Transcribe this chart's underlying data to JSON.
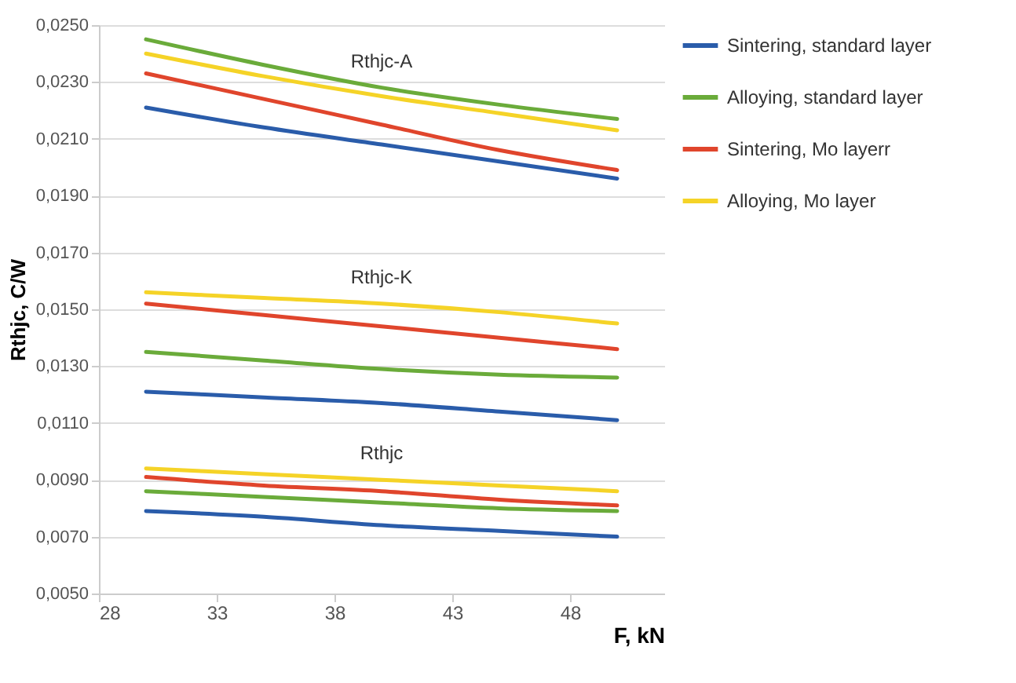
{
  "chart_data": {
    "type": "line",
    "xlabel": "F, kN",
    "ylabel": "Rthjc, C/W",
    "x": [
      30,
      35,
      40,
      45,
      50
    ],
    "xlim": [
      28,
      52
    ],
    "xticks": [
      28,
      33,
      38,
      43,
      48
    ],
    "ylim": [
      0.005,
      0.025
    ],
    "yticks": [
      {
        "value": 0.005,
        "label": "0,0050"
      },
      {
        "value": 0.007,
        "label": "0,0070"
      },
      {
        "value": 0.009,
        "label": "0,0090"
      },
      {
        "value": 0.011,
        "label": "0,0110"
      },
      {
        "value": 0.013,
        "label": "0,0130"
      },
      {
        "value": 0.015,
        "label": "0,0150"
      },
      {
        "value": 0.017,
        "label": "0,0170"
      },
      {
        "value": 0.019,
        "label": "0,0190"
      },
      {
        "value": 0.021,
        "label": "0,0210"
      },
      {
        "value": 0.023,
        "label": "0,0230"
      },
      {
        "value": 0.025,
        "label": "0,0250"
      }
    ],
    "grid": "y",
    "legend": "right",
    "marker": "none",
    "line_style": "solid",
    "series": [
      {
        "name": "Sintering, standard layer",
        "color": "#2a5caa",
        "values": [
          0.0221,
          0.0214,
          0.0208,
          0.0202,
          0.0196
        ]
      },
      {
        "name": "Alloying, standard layer",
        "color": "#6aab3a",
        "values": [
          0.0245,
          0.0236,
          0.0228,
          0.0222,
          0.0217
        ]
      },
      {
        "name": "Sintering, Mo layerr",
        "color": "#e0452c",
        "values": [
          0.0233,
          0.0224,
          0.0215,
          0.0206,
          0.0199
        ]
      },
      {
        "name": "Alloying, Mo layer",
        "color": "#f5d327",
        "values": [
          0.024,
          0.0232,
          0.0225,
          0.0219,
          0.0213
        ]
      },
      {
        "color": "#2a5caa",
        "values": [
          0.0121,
          0.0119,
          0.0117,
          0.0114,
          0.0111
        ]
      },
      {
        "color": "#6aab3a",
        "values": [
          0.0135,
          0.0132,
          0.0129,
          0.0127,
          0.0126
        ]
      },
      {
        "color": "#e0452c",
        "values": [
          0.0152,
          0.0148,
          0.0144,
          0.014,
          0.0136
        ]
      },
      {
        "color": "#f5d327",
        "values": [
          0.0156,
          0.0154,
          0.0152,
          0.0149,
          0.0145
        ]
      },
      {
        "color": "#2a5caa",
        "values": [
          0.0079,
          0.0077,
          0.0074,
          0.0072,
          0.007
        ]
      },
      {
        "color": "#6aab3a",
        "values": [
          0.0086,
          0.0084,
          0.0082,
          0.008,
          0.0079
        ]
      },
      {
        "color": "#e0452c",
        "values": [
          0.0091,
          0.0088,
          0.0086,
          0.0083,
          0.0081
        ]
      },
      {
        "color": "#f5d327",
        "values": [
          0.0094,
          0.0092,
          0.009,
          0.0088,
          0.0086
        ]
      }
    ],
    "annotations": [
      "Rthjc-A",
      "Rthjc-K",
      "Rthjc"
    ]
  }
}
